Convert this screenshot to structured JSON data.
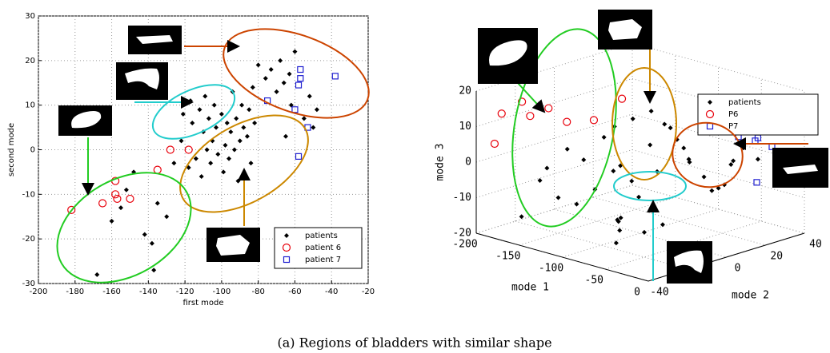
{
  "chart_data": [
    {
      "type": "scatter",
      "xlabel": "first mode",
      "ylabel": "second mode",
      "xlim": [
        -200,
        -20
      ],
      "ylim": [
        -30,
        30
      ],
      "xticks": [
        -200,
        -180,
        -160,
        -140,
        -120,
        -100,
        -80,
        -60,
        -40,
        -20
      ],
      "yticks": [
        -30,
        -20,
        -10,
        0,
        10,
        20,
        30
      ],
      "grid": true,
      "legend": "lower right",
      "series": [
        {
          "name": "patients",
          "color": "#000000",
          "marker": "diamond",
          "x": [
            -168,
            -160,
            -155,
            -152,
            -148,
            -142,
            -138,
            -137,
            -135,
            -130,
            -126,
            -122,
            -121,
            -118,
            -117,
            -116,
            -114,
            -112,
            -111,
            -110,
            -109,
            -108,
            -107,
            -106,
            -105,
            -104,
            -103,
            -102,
            -100,
            -99,
            -98,
            -97,
            -96,
            -95,
            -94,
            -93,
            -92,
            -91,
            -90,
            -89,
            -88,
            -86,
            -85,
            -84,
            -83,
            -80,
            -76,
            -73,
            -70,
            -68,
            -66,
            -63,
            -62,
            -55,
            -52,
            -50,
            -48,
            -60,
            -65,
            -82
          ],
          "y": [
            -28,
            -16,
            -13,
            -9,
            -5,
            -19,
            -21,
            -27,
            -12,
            -15,
            -3,
            2,
            8,
            -4,
            11,
            6,
            -2,
            9,
            -6,
            4,
            12,
            0,
            7,
            -3,
            2,
            10,
            5,
            -1,
            8,
            -5,
            1,
            6,
            -2,
            4,
            13,
            0,
            7,
            -7,
            2,
            10,
            5,
            3,
            9,
            -3,
            14,
            19,
            16,
            18,
            13,
            20,
            15,
            17,
            10,
            7,
            12,
            5,
            9,
            22,
            3,
            6
          ]
        },
        {
          "name": "patient 6",
          "color": "#e8000b",
          "marker": "circle",
          "x": [
            -182,
            -165,
            -158,
            -158,
            -157,
            -150,
            -135,
            -128,
            -118
          ],
          "y": [
            -13.5,
            -12,
            -7,
            -10,
            -11,
            -11,
            -4.5,
            0,
            0
          ]
        },
        {
          "name": "patient 7",
          "color": "#1f1fd0",
          "marker": "square",
          "x": [
            -58,
            -75,
            -60,
            -58,
            -57,
            -53,
            -38,
            -57
          ],
          "y": [
            -1.5,
            11,
            9,
            14.5,
            18,
            5,
            16.5,
            16
          ]
        }
      ]
    },
    {
      "type": "scatter3d",
      "xlabel": "mode 1",
      "ylabel": "mode 2",
      "zlabel": "mode 3",
      "xlim": [
        -200,
        0
      ],
      "ylim": [
        -40,
        40
      ],
      "zlim": [
        -20,
        20
      ],
      "xticks": [
        -200,
        -150,
        -100,
        -50,
        0
      ],
      "yticks": [
        -40,
        -20,
        0,
        20,
        40
      ],
      "zticks": [
        -20,
        -10,
        0,
        10,
        20
      ],
      "grid": true,
      "legend": "upper right",
      "series": [
        {
          "name": "patients",
          "color": "#000000",
          "marker": "diamond",
          "x": [
            -170,
            -160,
            -150,
            -145,
            -140,
            -135,
            -130,
            -125,
            -120,
            -115,
            -110,
            -105,
            -100,
            -95,
            -90,
            -85,
            -80,
            -75,
            -70,
            -65,
            -60,
            -55,
            -50,
            -45,
            -40,
            -35,
            -30,
            -25,
            -20,
            -100,
            -90,
            -80,
            -70,
            -60,
            -50,
            -40,
            -110,
            -120,
            -130,
            -60
          ],
          "y": [
            -30,
            -25,
            -20,
            -28,
            -15,
            -22,
            -10,
            -18,
            -5,
            -12,
            0,
            -8,
            5,
            -3,
            8,
            2,
            10,
            -5,
            12,
            0,
            15,
            5,
            18,
            -2,
            20,
            8,
            22,
            10,
            25,
            -10,
            -15,
            -20,
            -25,
            -30,
            -20,
            -15,
            10,
            5,
            0,
            30
          ],
          "z": [
            -15,
            -5,
            -10,
            0,
            -12,
            5,
            -8,
            2,
            -3,
            8,
            -6,
            0,
            4,
            -9,
            10,
            -2,
            6,
            -11,
            0,
            12,
            -4,
            3,
            -7,
            8,
            0,
            -5,
            5,
            -3,
            2,
            -14,
            -16,
            -12,
            -10,
            -15,
            -13,
            -11,
            12,
            10,
            8,
            -2
          ]
        },
        {
          "name": "P6",
          "color": "#e8000b",
          "marker": "circle",
          "x": [
            -190,
            -175,
            -165,
            -160,
            -150,
            -140,
            -120,
            -110
          ],
          "y": [
            -35,
            -38,
            -32,
            -30,
            -25,
            -20,
            -15,
            -5
          ],
          "z": [
            5,
            15,
            18,
            14,
            16,
            12,
            13,
            18
          ]
        },
        {
          "name": "P7",
          "color": "#1f1fd0",
          "marker": "square",
          "x": [
            -20,
            -15,
            -10,
            -5,
            -10,
            -20,
            -30,
            -5
          ],
          "y": [
            25,
            30,
            35,
            38,
            20,
            15,
            28,
            40
          ],
          "z": [
            8,
            5,
            2,
            0,
            -3,
            10,
            6,
            -2
          ]
        }
      ]
    }
  ],
  "caption": "(a) Regions of bladders with similar shape"
}
